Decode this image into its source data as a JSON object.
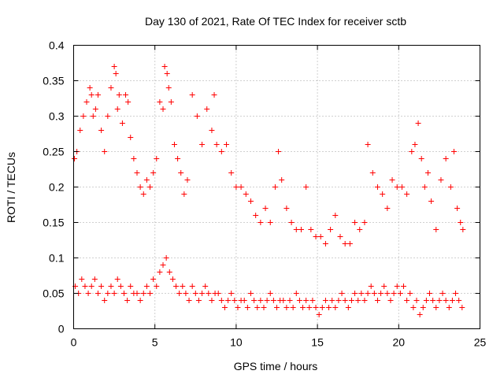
{
  "chart_data": {
    "type": "scatter",
    "title": "Day 130 of 2021, Rate Of TEC Index for receiver sctb",
    "xlabel": "GPS time / hours",
    "ylabel": "ROTI / TECUs",
    "xlim": [
      0,
      25
    ],
    "ylim": [
      0,
      0.4
    ],
    "xticks": [
      "0",
      "5",
      "10",
      "15",
      "20",
      "25"
    ],
    "yticks": [
      "0",
      "0.05",
      "0.1",
      "0.15",
      "0.2",
      "0.25",
      "0.3",
      "0.35",
      "0.4"
    ],
    "grid": true,
    "marker": "plus",
    "color": "#ff0000",
    "series": [
      {
        "x": [
          0.05,
          0.2,
          0.4,
          0.6,
          0.8,
          1.0,
          1.1,
          1.2,
          1.35,
          1.5,
          1.7,
          1.9,
          2.1,
          2.3,
          2.5,
          2.6,
          2.7,
          2.8,
          3.0,
          3.2,
          3.35,
          3.5,
          3.7,
          3.9,
          4.1,
          4.3,
          4.5,
          4.7,
          4.9,
          5.1,
          5.3,
          5.5,
          5.6,
          5.75,
          5.85,
          6.0,
          6.2,
          6.4,
          6.6,
          6.8,
          7.0,
          7.3,
          7.6,
          7.9,
          8.2,
          8.5,
          8.65,
          8.8,
          9.1,
          9.4,
          9.7,
          10.0,
          10.3,
          10.6,
          10.9,
          11.2,
          11.5,
          11.8,
          12.1,
          12.4,
          12.6,
          12.8,
          13.1,
          13.4,
          13.7,
          14.0,
          14.3,
          14.6,
          14.9,
          15.2,
          15.5,
          15.8,
          16.1,
          16.4,
          16.7,
          17.0,
          17.3,
          17.6,
          17.9,
          18.1,
          18.4,
          18.7,
          19.0,
          19.3,
          19.6,
          19.9,
          20.2,
          20.5,
          20.8,
          21.0,
          21.2,
          21.4,
          21.6,
          21.8,
          22.0,
          22.3,
          22.6,
          22.9,
          23.2,
          23.4,
          23.6,
          23.8,
          23.95
        ],
        "y": [
          0.24,
          0.25,
          0.28,
          0.3,
          0.32,
          0.34,
          0.33,
          0.3,
          0.31,
          0.33,
          0.28,
          0.25,
          0.3,
          0.34,
          0.37,
          0.36,
          0.31,
          0.33,
          0.29,
          0.33,
          0.32,
          0.27,
          0.24,
          0.22,
          0.2,
          0.19,
          0.21,
          0.2,
          0.22,
          0.24,
          0.32,
          0.31,
          0.37,
          0.36,
          0.34,
          0.32,
          0.26,
          0.24,
          0.22,
          0.19,
          0.21,
          0.33,
          0.3,
          0.26,
          0.31,
          0.28,
          0.33,
          0.26,
          0.25,
          0.26,
          0.22,
          0.2,
          0.2,
          0.19,
          0.18,
          0.16,
          0.15,
          0.17,
          0.15,
          0.2,
          0.25,
          0.21,
          0.17,
          0.15,
          0.14,
          0.14,
          0.2,
          0.14,
          0.13,
          0.13,
          0.12,
          0.14,
          0.16,
          0.13,
          0.12,
          0.12,
          0.15,
          0.14,
          0.15,
          0.26,
          0.22,
          0.2,
          0.19,
          0.17,
          0.21,
          0.2,
          0.2,
          0.19,
          0.25,
          0.26,
          0.29,
          0.24,
          0.2,
          0.22,
          0.18,
          0.14,
          0.21,
          0.24,
          0.2,
          0.25,
          0.17,
          0.15,
          0.14
        ]
      },
      {
        "x": [
          0.1,
          0.3,
          0.5,
          0.7,
          0.9,
          1.1,
          1.3,
          1.5,
          1.7,
          1.9,
          2.1,
          2.3,
          2.5,
          2.7,
          2.9,
          3.1,
          3.3,
          3.5,
          3.7,
          3.9,
          4.1,
          4.3,
          4.5,
          4.7,
          4.9,
          5.1,
          5.3,
          5.5,
          5.7,
          5.9,
          6.1,
          6.3,
          6.5,
          6.7,
          6.9,
          7.1,
          7.3,
          7.5,
          7.7,
          7.9,
          8.1,
          8.3,
          8.5,
          8.7,
          8.9,
          9.1,
          9.3,
          9.5,
          9.7,
          9.9,
          10.1,
          10.3,
          10.5,
          10.7,
          10.9,
          11.1,
          11.3,
          11.5,
          11.7,
          11.9,
          12.1,
          12.3,
          12.5,
          12.7,
          12.9,
          13.1,
          13.3,
          13.5,
          13.7,
          13.9,
          14.1,
          14.3,
          14.5,
          14.7,
          14.9,
          15.1,
          15.3,
          15.5,
          15.7,
          15.9,
          16.1,
          16.3,
          16.5,
          16.7,
          16.9,
          17.1,
          17.3,
          17.5,
          17.7,
          17.9,
          18.1,
          18.3,
          18.5,
          18.7,
          18.9,
          19.1,
          19.3,
          19.5,
          19.7,
          19.9,
          20.1,
          20.3,
          20.5,
          20.7,
          20.9,
          21.1,
          21.3,
          21.5,
          21.7,
          21.9,
          22.1,
          22.3,
          22.5,
          22.7,
          22.9,
          23.1,
          23.3,
          23.5,
          23.7,
          23.9
        ],
        "y": [
          0.06,
          0.05,
          0.07,
          0.06,
          0.05,
          0.06,
          0.07,
          0.05,
          0.06,
          0.04,
          0.05,
          0.06,
          0.05,
          0.07,
          0.06,
          0.05,
          0.04,
          0.06,
          0.05,
          0.05,
          0.04,
          0.05,
          0.06,
          0.05,
          0.07,
          0.06,
          0.08,
          0.09,
          0.1,
          0.08,
          0.07,
          0.06,
          0.05,
          0.06,
          0.05,
          0.04,
          0.06,
          0.05,
          0.04,
          0.05,
          0.06,
          0.05,
          0.04,
          0.05,
          0.05,
          0.04,
          0.03,
          0.04,
          0.05,
          0.04,
          0.03,
          0.04,
          0.04,
          0.03,
          0.05,
          0.04,
          0.03,
          0.04,
          0.03,
          0.04,
          0.05,
          0.04,
          0.03,
          0.04,
          0.04,
          0.03,
          0.04,
          0.03,
          0.05,
          0.04,
          0.03,
          0.04,
          0.03,
          0.04,
          0.03,
          0.02,
          0.03,
          0.04,
          0.03,
          0.04,
          0.03,
          0.04,
          0.05,
          0.04,
          0.03,
          0.04,
          0.05,
          0.04,
          0.05,
          0.04,
          0.05,
          0.06,
          0.05,
          0.04,
          0.05,
          0.06,
          0.05,
          0.04,
          0.05,
          0.06,
          0.05,
          0.06,
          0.04,
          0.05,
          0.03,
          0.04,
          0.02,
          0.03,
          0.04,
          0.05,
          0.04,
          0.03,
          0.04,
          0.05,
          0.04,
          0.03,
          0.04,
          0.05,
          0.04,
          0.03
        ]
      }
    ]
  }
}
